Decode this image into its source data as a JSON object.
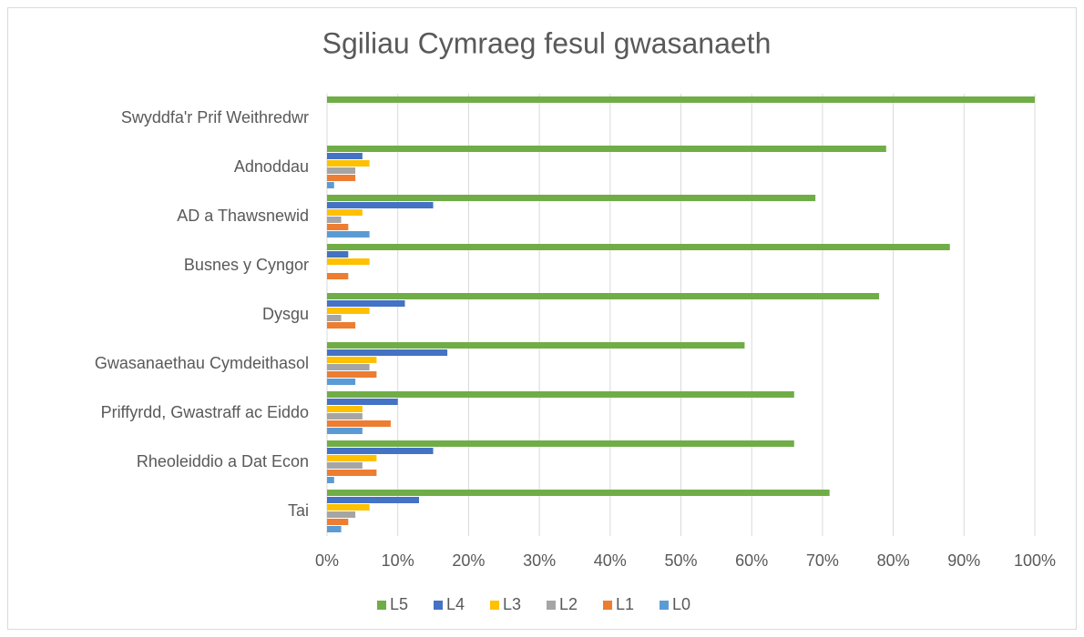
{
  "chart_data": {
    "type": "bar",
    "orientation": "horizontal",
    "title": "Sgiliau Cymraeg fesul gwasanaeth",
    "categories": [
      "Swyddfa'r Prif Weithredwr",
      "Adnoddau",
      "AD a Thawsnewid",
      "Busnes y Cyngor",
      "Dysgu",
      "Gwasanaethau Cymdeithasol",
      "Priffyrdd, Gwastraff ac Eiddo",
      "Rheoleiddio a Dat Econ",
      "Tai"
    ],
    "series": [
      {
        "name": "L5",
        "color": "#70ad47",
        "values": [
          100,
          79,
          69,
          88,
          78,
          59,
          66,
          66,
          71
        ]
      },
      {
        "name": "L4",
        "color": "#4472c4",
        "values": [
          0,
          5,
          15,
          3,
          11,
          17,
          10,
          15,
          13
        ]
      },
      {
        "name": "L3",
        "color": "#ffc000",
        "values": [
          0,
          6,
          5,
          6,
          6,
          7,
          5,
          7,
          6
        ]
      },
      {
        "name": "L2",
        "color": "#a5a5a5",
        "values": [
          0,
          4,
          2,
          0,
          2,
          6,
          5,
          5,
          4
        ]
      },
      {
        "name": "L1",
        "color": "#ed7d31",
        "values": [
          0,
          4,
          3,
          3,
          4,
          7,
          9,
          7,
          3
        ]
      },
      {
        "name": "L0",
        "color": "#5b9bd5",
        "values": [
          0,
          1,
          6,
          0,
          0,
          4,
          5,
          1,
          2
        ]
      }
    ],
    "xlim": [
      0,
      100
    ],
    "xticks": [
      {
        "value": 0,
        "label": "0%"
      },
      {
        "value": 10,
        "label": "10%"
      },
      {
        "value": 20,
        "label": "20%"
      },
      {
        "value": 30,
        "label": "30%"
      },
      {
        "value": 40,
        "label": "40%"
      },
      {
        "value": 50,
        "label": "50%"
      },
      {
        "value": 60,
        "label": "60%"
      },
      {
        "value": 70,
        "label": "70%"
      },
      {
        "value": 80,
        "label": "80%"
      },
      {
        "value": 90,
        "label": "90%"
      },
      {
        "value": 100,
        "label": "100%"
      }
    ],
    "grid": true,
    "legend": "bottom"
  }
}
